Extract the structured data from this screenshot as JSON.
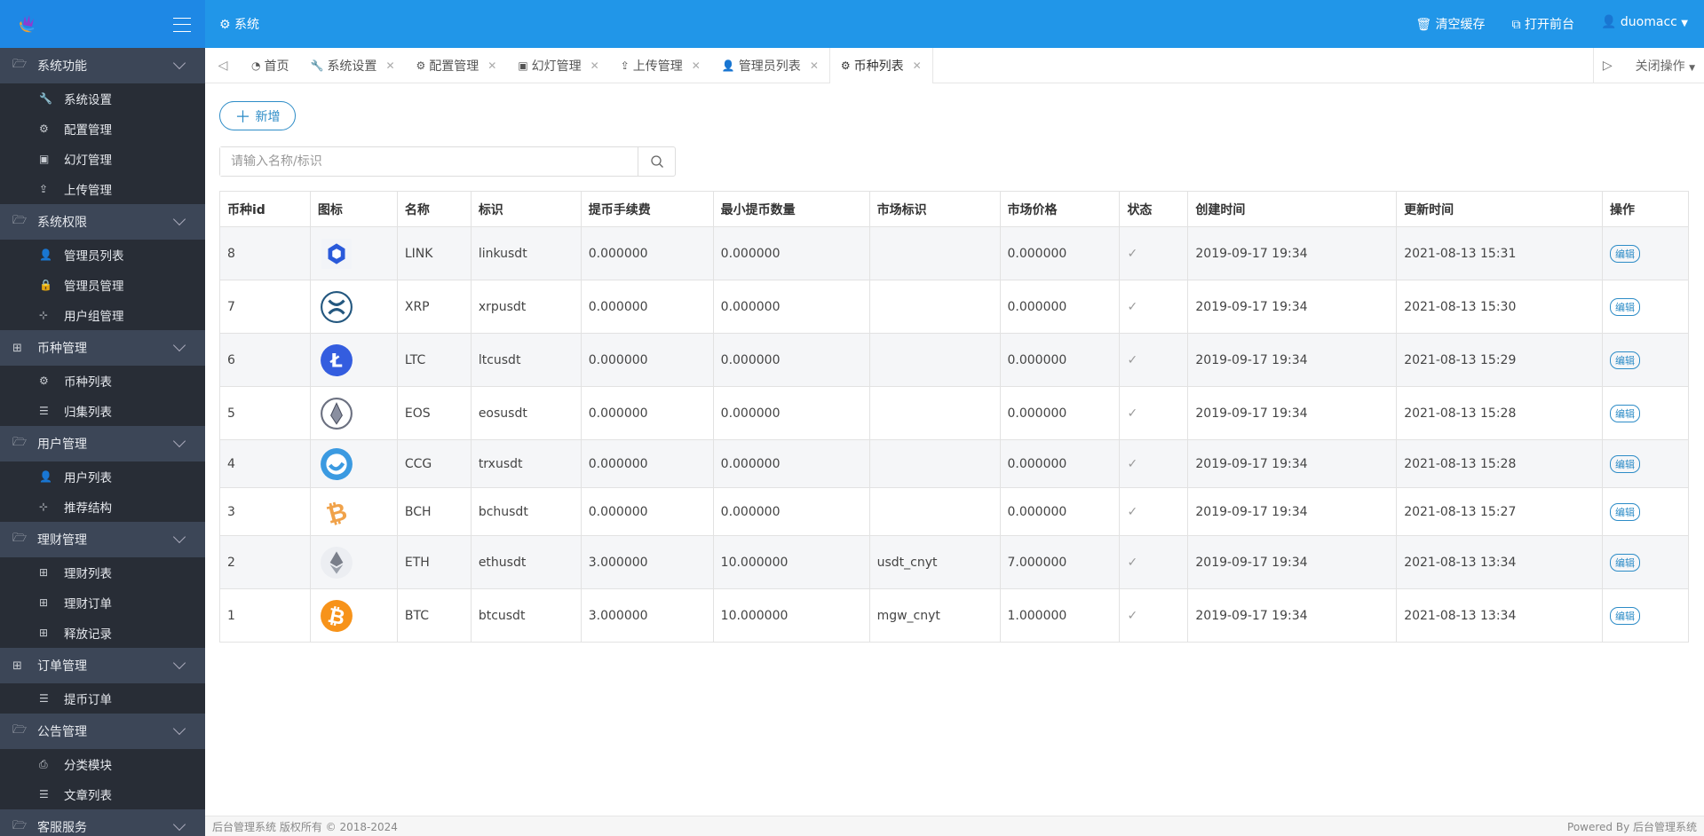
{
  "topbar": {
    "title": "系统",
    "clear_cache": "清空缓存",
    "open_front": "打开前台",
    "user": "duomacc"
  },
  "sidebar": [
    {
      "label": "系统功能",
      "icon": "folder-icon",
      "items": [
        {
          "label": "系统设置",
          "icon": "wrench-icon"
        },
        {
          "label": "配置管理",
          "icon": "gears-icon"
        },
        {
          "label": "幻灯管理",
          "icon": "image-icon"
        },
        {
          "label": "上传管理",
          "icon": "upload-icon"
        }
      ]
    },
    {
      "label": "系统权限",
      "icon": "folder-icon",
      "items": [
        {
          "label": "管理员列表",
          "icon": "user-icon"
        },
        {
          "label": "管理员管理",
          "icon": "lock-icon"
        },
        {
          "label": "用户组管理",
          "icon": "sitemap-icon"
        }
      ]
    },
    {
      "label": "币种管理",
      "icon": "grid-icon",
      "items": [
        {
          "label": "币种列表",
          "icon": "gears-icon"
        },
        {
          "label": "归集列表",
          "icon": "list-icon"
        }
      ]
    },
    {
      "label": "用户管理",
      "icon": "folder-icon",
      "items": [
        {
          "label": "用户列表",
          "icon": "user-icon"
        },
        {
          "label": "推荐结构",
          "icon": "sitemap-icon"
        }
      ]
    },
    {
      "label": "理财管理",
      "icon": "folder-icon",
      "items": [
        {
          "label": "理财列表",
          "icon": "grid-icon"
        },
        {
          "label": "理财订单",
          "icon": "grid-icon"
        },
        {
          "label": "释放记录",
          "icon": "grid-icon"
        }
      ]
    },
    {
      "label": "订单管理",
      "icon": "grid-icon",
      "items": [
        {
          "label": "提币订单",
          "icon": "list-icon"
        }
      ]
    },
    {
      "label": "公告管理",
      "icon": "folder-icon",
      "items": [
        {
          "label": "分类模块",
          "icon": "inbox-icon"
        },
        {
          "label": "文章列表",
          "icon": "list-icon"
        }
      ]
    },
    {
      "label": "客服服务",
      "icon": "folder-icon",
      "items": []
    }
  ],
  "tabs": [
    {
      "label": "首页",
      "icon": "dashboard-icon",
      "closable": false
    },
    {
      "label": "系统设置",
      "icon": "wrench-icon",
      "closable": true
    },
    {
      "label": "配置管理",
      "icon": "gears-icon",
      "closable": true
    },
    {
      "label": "幻灯管理",
      "icon": "image-icon",
      "closable": true
    },
    {
      "label": "上传管理",
      "icon": "upload-icon",
      "closable": true
    },
    {
      "label": "管理员列表",
      "icon": "user-icon",
      "closable": true
    },
    {
      "label": "币种列表",
      "icon": "gears-icon",
      "closable": true,
      "active": true
    }
  ],
  "close_ops": "关闭操作",
  "add_label": "新增",
  "search": {
    "placeholder": "请输入名称/标识",
    "value": ""
  },
  "table": {
    "headers": [
      "币种id",
      "图标",
      "名称",
      "标识",
      "提币手续费",
      "最小提币数量",
      "市场标识",
      "市场价格",
      "状态",
      "创建时间",
      "更新时间",
      "操作"
    ],
    "rows": [
      {
        "id": "8",
        "icon": "link",
        "name": "LINK",
        "symbol": "linkusdt",
        "fee": "0.000000",
        "min": "0.000000",
        "market": "",
        "price": "0.000000",
        "status": "check",
        "created": "2019-09-17 19:34",
        "updated": "2021-08-13 15:31",
        "action": "编辑"
      },
      {
        "id": "7",
        "icon": "xrp",
        "name": "XRP",
        "symbol": "xrpusdt",
        "fee": "0.000000",
        "min": "0.000000",
        "market": "",
        "price": "0.000000",
        "status": "check",
        "created": "2019-09-17 19:34",
        "updated": "2021-08-13 15:30",
        "action": "编辑"
      },
      {
        "id": "6",
        "icon": "ltc",
        "name": "LTC",
        "symbol": "ltcusdt",
        "fee": "0.000000",
        "min": "0.000000",
        "market": "",
        "price": "0.000000",
        "status": "check",
        "created": "2019-09-17 19:34",
        "updated": "2021-08-13 15:29",
        "action": "编辑"
      },
      {
        "id": "5",
        "icon": "eos",
        "name": "EOS",
        "symbol": "eosusdt",
        "fee": "0.000000",
        "min": "0.000000",
        "market": "",
        "price": "0.000000",
        "status": "check",
        "created": "2019-09-17 19:34",
        "updated": "2021-08-13 15:28",
        "action": "编辑"
      },
      {
        "id": "4",
        "icon": "ccg",
        "name": "CCG",
        "symbol": "trxusdt",
        "fee": "0.000000",
        "min": "0.000000",
        "market": "",
        "price": "0.000000",
        "status": "check",
        "created": "2019-09-17 19:34",
        "updated": "2021-08-13 15:28",
        "action": "编辑"
      },
      {
        "id": "3",
        "icon": "bch",
        "name": "BCH",
        "symbol": "bchusdt",
        "fee": "0.000000",
        "min": "0.000000",
        "market": "",
        "price": "0.000000",
        "status": "check",
        "created": "2019-09-17 19:34",
        "updated": "2021-08-13 15:27",
        "action": "编辑"
      },
      {
        "id": "2",
        "icon": "eth",
        "name": "ETH",
        "symbol": "ethusdt",
        "fee": "3.000000",
        "min": "10.000000",
        "market": "usdt_cnyt",
        "price": "7.000000",
        "status": "check",
        "created": "2019-09-17 19:34",
        "updated": "2021-08-13 13:34",
        "action": "编辑"
      },
      {
        "id": "1",
        "icon": "btc",
        "name": "BTC",
        "symbol": "btcusdt",
        "fee": "3.000000",
        "min": "10.000000",
        "market": "mgw_cnyt",
        "price": "1.000000",
        "status": "check",
        "created": "2019-09-17 19:34",
        "updated": "2021-08-13 13:34",
        "action": "编辑"
      }
    ]
  },
  "footer": {
    "left": "后台管理系统 版权所有 © 2018-2024",
    "right": "Powered By 后台管理系统"
  },
  "colors": {
    "primary": "#2196e8",
    "sidebar": "#282d36",
    "sidebar_group": "#3c4657",
    "accent": "#2d8cc7"
  }
}
